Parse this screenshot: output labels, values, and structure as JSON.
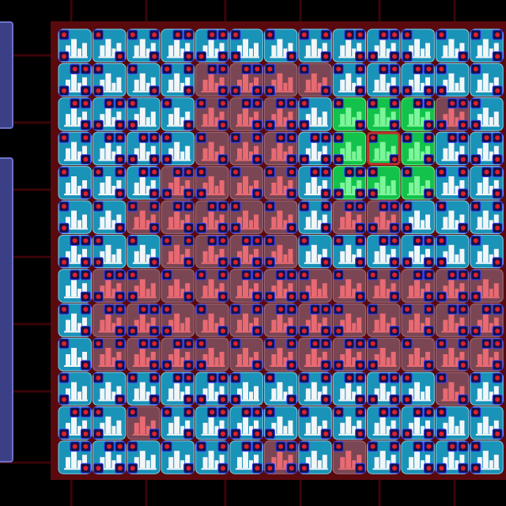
{
  "board": {
    "rows": [
      "bbbbbbbbbbbbb",
      "bbbbrrrrbbbbb",
      "bbbbrrrbgggrb",
      "bbbbrrrbgggbb",
      "bbbrrrrbgggbb",
      "bbrrrrrbrrbbb",
      "bbbrrrrbbbbbb",
      "brrrrrrrrrrrr",
      "brrrrrrrrrrrr",
      "brrrrrrrrrrrr",
      "bbbbbbbbbbbrb",
      "bbrbbbbbbbbbb",
      "bbbbbbrbrbbbb"
    ],
    "selected": [
      3,
      9
    ]
  }
}
